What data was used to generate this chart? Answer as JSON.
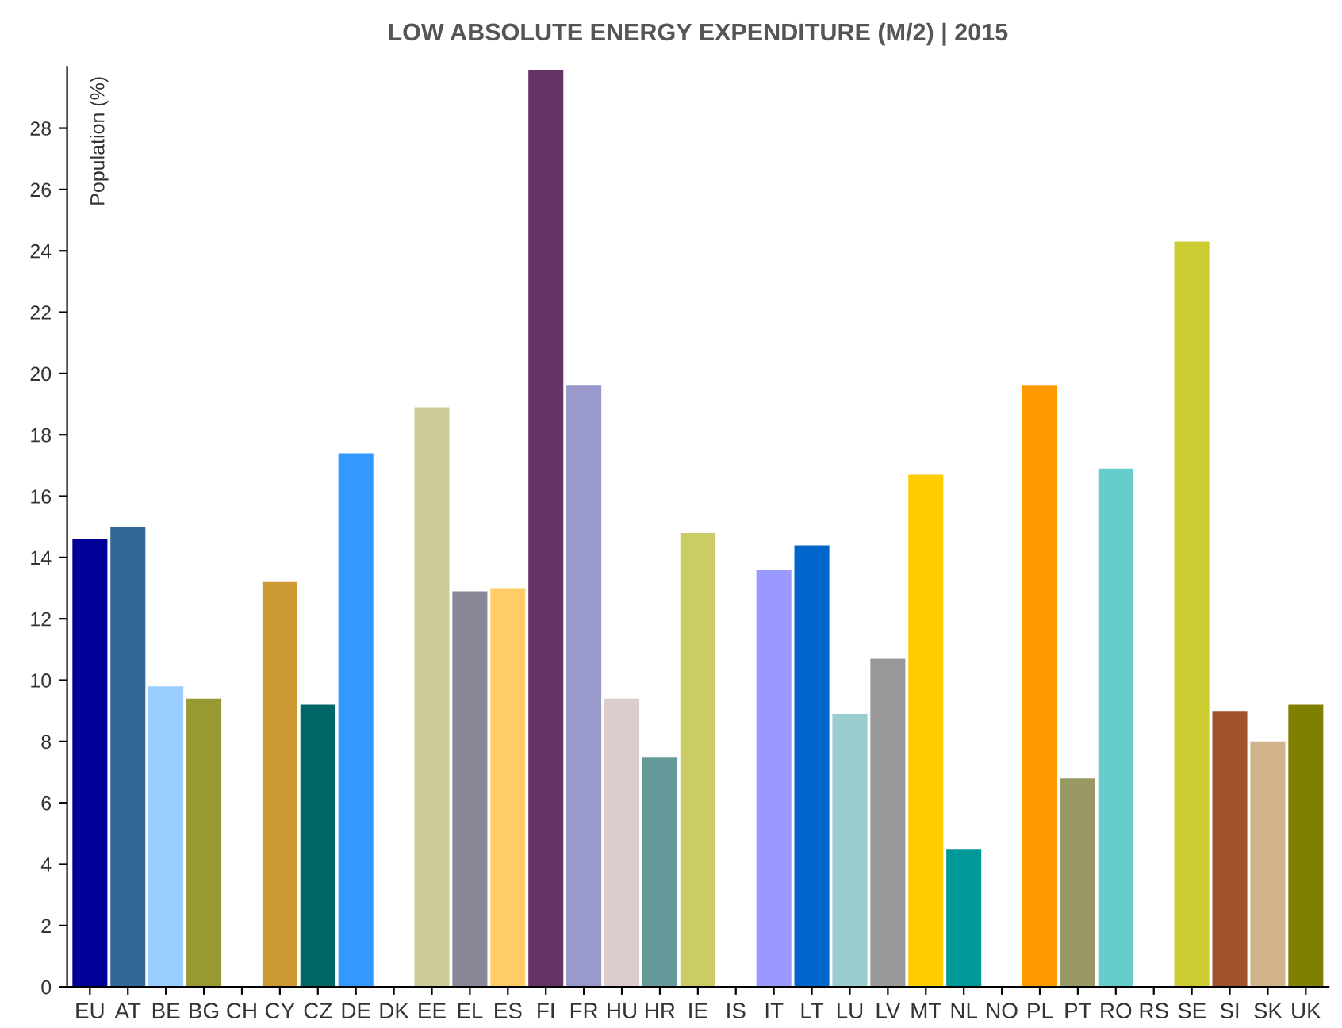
{
  "chart_data": {
    "type": "bar",
    "title": "LOW ABSOLUTE ENERGY EXPENDITURE (M/2) | 2015",
    "ylabel": "Population (%)",
    "categories": [
      "EU",
      "AT",
      "BE",
      "BG",
      "CH",
      "CY",
      "CZ",
      "DE",
      "DK",
      "EE",
      "EL",
      "ES",
      "FI",
      "FR",
      "HU",
      "HR",
      "IE",
      "IS",
      "IT",
      "LT",
      "LU",
      "LV",
      "MT",
      "NL",
      "NO",
      "PL",
      "PT",
      "RO",
      "RS",
      "SE",
      "SI",
      "SK",
      "UK"
    ],
    "values": [
      14.6,
      15.0,
      9.8,
      9.4,
      null,
      13.2,
      9.2,
      17.4,
      null,
      18.9,
      12.9,
      13.0,
      29.9,
      19.6,
      9.4,
      7.5,
      14.8,
      null,
      13.6,
      14.4,
      8.9,
      10.7,
      16.7,
      4.5,
      null,
      19.6,
      6.8,
      16.9,
      null,
      24.3,
      9.0,
      8.0,
      9.2
    ],
    "colors": [
      "#000099",
      "#336699",
      "#99ccff",
      "#999933",
      "#ffffff",
      "#cc9933",
      "#006666",
      "#3399ff",
      "#ffffff",
      "#cccc99",
      "#888899",
      "#ffcc66",
      "#663366",
      "#9999cc",
      "#dccccc",
      "#669999",
      "#cccc66",
      "#ffffff",
      "#9999ff",
      "#0066cc",
      "#99cccc",
      "#999999",
      "#ffcc00",
      "#009999",
      "#ffffff",
      "#ff9900",
      "#999966",
      "#66cccc",
      "#ffffff",
      "#cccc33",
      "#a0522d",
      "#d2b48c",
      "#808000"
    ],
    "ylim": [
      0,
      30
    ],
    "yticks": [
      0,
      2,
      4,
      6,
      8,
      10,
      12,
      14,
      16,
      18,
      20,
      22,
      24,
      26,
      28
    ],
    "grid": false,
    "legend": false
  }
}
